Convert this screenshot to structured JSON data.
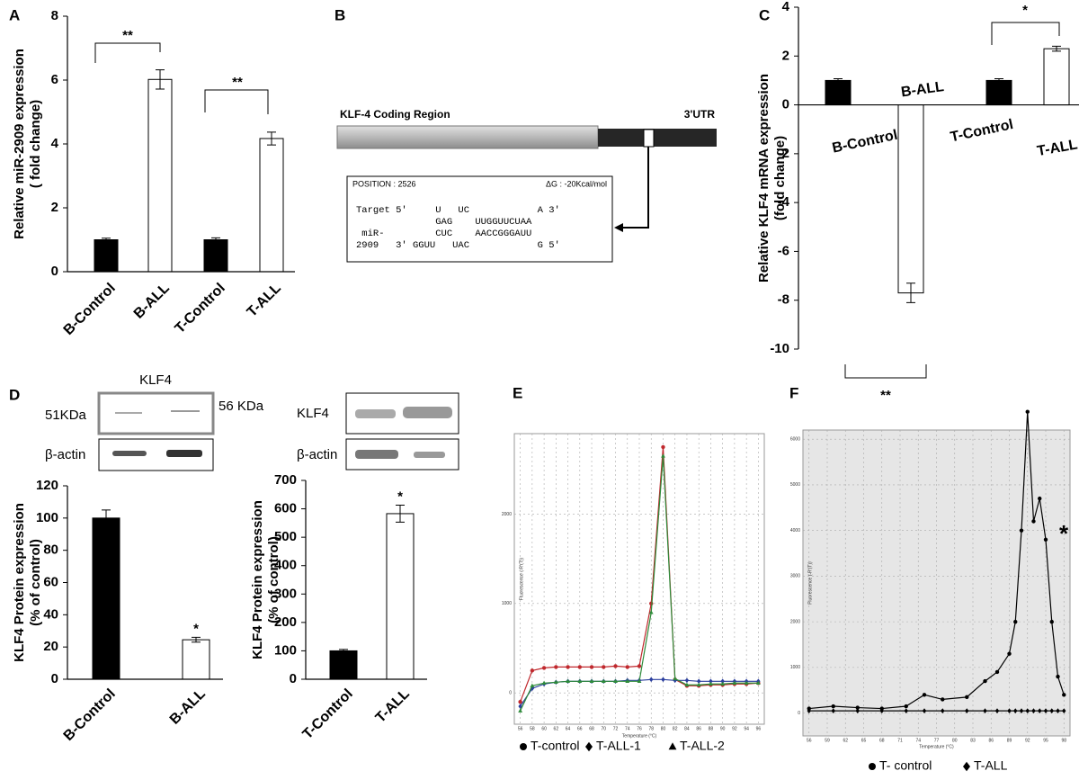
{
  "diagram_b": {
    "panel_label": "B",
    "coding_region": "KLF-4 Coding Region",
    "utr": "3'UTR",
    "position": "POSITION : 2526",
    "delta_g": "ΔG : -20Kcal/mol",
    "alignment": [
      "Target 5'     U   UC            A 3'",
      "              GAG    UUGGUUCUAA",
      " miR-         CUC    AACCGGGAUU",
      "2909   3' GGUU   UAC            G 5'"
    ]
  },
  "chart_data": [
    {
      "type": "bar",
      "panel_label": "A",
      "ylabel": [
        "Relative miR-2909 expression",
        "( fold change)"
      ],
      "categories": [
        "B-Control",
        "B-ALL",
        "T-Control",
        "T-ALL"
      ],
      "values": [
        1,
        6.02,
        1,
        4.17
      ],
      "errors": [
        0.05,
        0.3,
        0.06,
        0.2
      ],
      "colors": [
        "#000000",
        "#ffffff",
        "#000000",
        "#ffffff"
      ],
      "ylim": [
        0,
        8
      ],
      "yticks": [
        0,
        2,
        4,
        6,
        8
      ],
      "annotations": [
        "**",
        "**"
      ]
    },
    {
      "type": "bar",
      "panel_label": "C",
      "ylabel": [
        "Relative KLF4 mRNA expression",
        "(fold change)"
      ],
      "categories": [
        "B-Control",
        "B-ALL",
        "T-Control",
        "T-ALL"
      ],
      "values": [
        1,
        -7.7,
        1,
        2.3
      ],
      "errors": [
        0.07,
        0.4,
        0.07,
        0.1
      ],
      "colors": [
        "#000000",
        "#ffffff",
        "#000000",
        "#ffffff"
      ],
      "ylim": [
        -10,
        4
      ],
      "yticks": [
        -10,
        -8,
        -6,
        -4,
        -2,
        0,
        2,
        4
      ],
      "annotations": [
        "*",
        "**"
      ]
    },
    {
      "type": "bar",
      "panel_label": "D",
      "blot": {
        "title": "KLF4",
        "left_label": "51KDa",
        "right_label": "56 KDa",
        "loading": "β-actin"
      },
      "ylabel": [
        "KLF4 Protein expression",
        "(% of control)"
      ],
      "categories": [
        "B-Control",
        "B-ALL"
      ],
      "values": [
        100,
        24.5
      ],
      "errors": [
        5,
        1.5
      ],
      "colors": [
        "#000000",
        "#ffffff"
      ],
      "ylim": [
        0,
        120
      ],
      "yticks": [
        0,
        20,
        40,
        60,
        80,
        100,
        120
      ],
      "annotations": [
        "*"
      ]
    },
    {
      "type": "bar",
      "blot": {
        "left_label": "KLF4",
        "loading": "β-actin"
      },
      "ylabel": [
        "KLF4 Protein expression",
        "(% of control)"
      ],
      "categories": [
        "T-Control",
        "T-ALL"
      ],
      "values": [
        100,
        583
      ],
      "errors": [
        5,
        30
      ],
      "colors": [
        "#000000",
        "#ffffff"
      ],
      "ylim": [
        0,
        700
      ],
      "yticks": [
        0,
        100,
        200,
        300,
        400,
        500,
        600,
        700
      ],
      "annotations": [
        "*"
      ]
    },
    {
      "type": "line",
      "panel_label": "E",
      "xlabel": "Temperature (°C)",
      "ylabel": "Fluorescence (-R'(T))",
      "plot_background": "#ffffff",
      "grid": true,
      "x": [
        56,
        58,
        60,
        62,
        64,
        66,
        68,
        70,
        72,
        74,
        76,
        78,
        80,
        82,
        84,
        86,
        88,
        90,
        92,
        94,
        96
      ],
      "series": [
        {
          "name": "T-control",
          "color": "#c0282d",
          "marker": "circle",
          "values": [
            -100,
            250,
            280,
            290,
            290,
            290,
            290,
            290,
            300,
            290,
            300,
            1000,
            2750,
            150,
            80,
            80,
            90,
            90,
            100,
            100,
            110
          ]
        },
        {
          "name": "T-ALL-1",
          "color": "#2b3f9e",
          "marker": "diamond",
          "values": [
            -150,
            50,
            100,
            120,
            130,
            130,
            130,
            130,
            130,
            140,
            140,
            150,
            150,
            140,
            140,
            130,
            130,
            130,
            130,
            130,
            130
          ]
        },
        {
          "name": "T-ALL-2",
          "color": "#2e8b3a",
          "marker": "triangle",
          "values": [
            -200,
            80,
            110,
            120,
            130,
            130,
            130,
            130,
            130,
            130,
            130,
            900,
            2650,
            160,
            90,
            90,
            100,
            100,
            110,
            110,
            110
          ]
        }
      ],
      "xlim": [
        55,
        97
      ],
      "xticks": [
        56,
        58,
        60,
        62,
        64,
        66,
        68,
        70,
        72,
        74,
        76,
        78,
        80,
        82,
        84,
        86,
        88,
        90,
        92,
        94,
        96
      ],
      "ylim": [
        -350,
        2900
      ],
      "yticks": [
        0,
        1000,
        2000
      ]
    },
    {
      "type": "line",
      "panel_label": "F",
      "xlabel": "Temperature (°C)",
      "ylabel": "Fluorescence (-R'(T))",
      "plot_background": "#e6e6e6",
      "grid": true,
      "annotation": "*",
      "x": [
        56,
        60,
        64,
        68,
        72,
        75,
        78,
        82,
        85,
        87,
        89,
        90,
        91,
        92,
        93,
        94,
        95,
        96,
        97,
        98
      ],
      "series": [
        {
          "name": "T- control",
          "color": "#000000",
          "marker": "circle",
          "values": [
            100,
            150,
            120,
            100,
            150,
            400,
            300,
            350,
            700,
            900,
            1300,
            2000,
            4000,
            6600,
            4200,
            4700,
            3800,
            2000,
            800,
            400
          ]
        },
        {
          "name": "T-ALL",
          "color": "#000000",
          "marker": "diamond",
          "values": [
            50,
            50,
            50,
            50,
            50,
            50,
            50,
            50,
            50,
            50,
            50,
            50,
            50,
            50,
            50,
            50,
            50,
            50,
            50,
            50
          ]
        }
      ],
      "xlim": [
        55,
        99
      ],
      "xticks": [
        56,
        59,
        62,
        65,
        68,
        71,
        74,
        77,
        80,
        83,
        86,
        89,
        92,
        95,
        98
      ],
      "ylim": [
        -500,
        6200
      ],
      "yticks": [
        0,
        1000,
        2000,
        3000,
        4000,
        5000,
        6000
      ]
    }
  ]
}
